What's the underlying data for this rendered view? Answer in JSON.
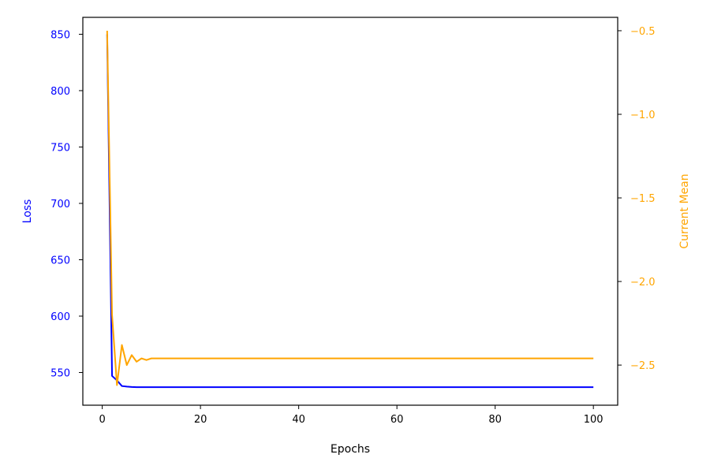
{
  "chart_data": {
    "type": "line",
    "title": "",
    "xlabel": "Epochs",
    "ylabel_left": "Loss",
    "ylabel_right": "Current Mean",
    "xlim": [
      -3.95,
      104.95
    ],
    "ylim_left": [
      521,
      865
    ],
    "ylim_right": [
      -2.74,
      -0.42
    ],
    "xticks": [
      0,
      20,
      40,
      60,
      80,
      100
    ],
    "yticks_left": [
      550,
      600,
      650,
      700,
      750,
      800,
      850
    ],
    "yticks_right": [
      -2.5,
      -2.0,
      -1.5,
      -1.0,
      -0.5
    ],
    "ytick_labels_right": [
      "−2.5",
      "−2.0",
      "−1.5",
      "−1.0",
      "−0.5"
    ],
    "grid": false,
    "colors": {
      "loss": "#0000ff",
      "current_mean": "#ffa500",
      "axes": "#000000"
    },
    "series": [
      {
        "key": "loss",
        "axis": "left",
        "x": [
          1,
          2,
          3,
          4,
          5,
          6,
          7,
          8,
          9,
          10,
          20,
          40,
          60,
          80,
          100
        ],
        "values": [
          850,
          547,
          543,
          538,
          537.5,
          537.2,
          537,
          537,
          537,
          537,
          537,
          537,
          537,
          537,
          537
        ]
      },
      {
        "key": "current_mean",
        "axis": "right",
        "x": [
          1,
          2,
          3,
          4,
          5,
          6,
          7,
          8,
          9,
          10,
          20,
          40,
          60,
          80,
          100
        ],
        "values": [
          -0.5,
          -2.2,
          -2.62,
          -2.38,
          -2.5,
          -2.44,
          -2.48,
          -2.46,
          -2.47,
          -2.46,
          -2.46,
          -2.46,
          -2.46,
          -2.46,
          -2.46
        ]
      }
    ]
  }
}
